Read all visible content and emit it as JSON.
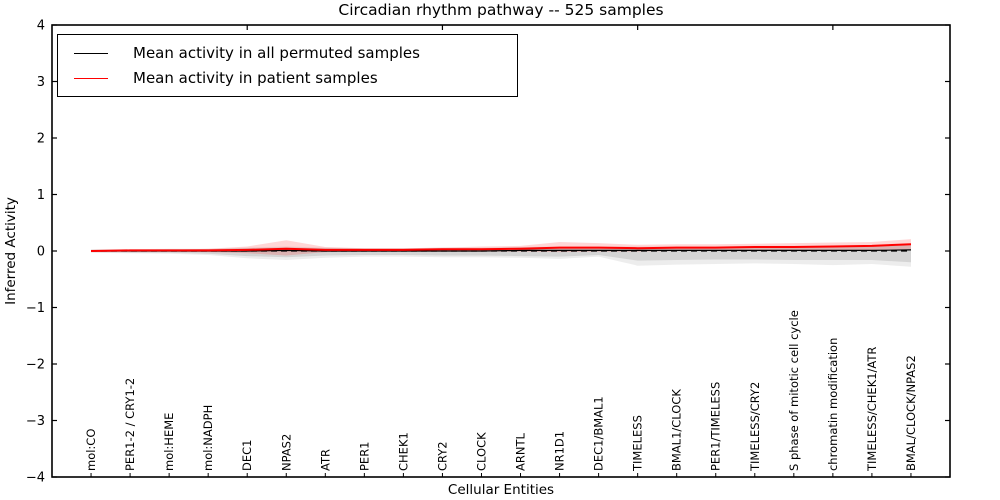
{
  "window": {
    "background": "#ffffff"
  },
  "chart_data": {
    "type": "line",
    "title": "Circadian rhythm pathway -- 525 samples",
    "xlabel": "Cellular Entities",
    "ylabel": "Inferred Activity",
    "ylim": [
      -4,
      4
    ],
    "ytick_step": 1,
    "grid": false,
    "legend_position": "upper left",
    "x_tick_label_rotation": 90,
    "top_tick_indices": [
      4,
      9,
      14,
      19
    ],
    "categories": [
      "mol:CO",
      "PER1-2 / CRY1-2",
      "mol:HEME",
      "mol:NADPH",
      "DEC1",
      "NPAS2",
      "ATR",
      "PER1",
      "CHEK1",
      "CRY2",
      "CLOCK",
      "ARNTL",
      "NR1D1",
      "DEC1/BMAL1",
      "TIMELESS",
      "BMAL1/CLOCK",
      "PER1/TIMELESS",
      "TIMELESS/CRY2",
      "S phase of mitotic cell cycle",
      "chromatin modification",
      "TIMELESS/CHEK1/ATR",
      "BMAL/CLOCK/NPAS2"
    ],
    "series": [
      {
        "name": "Mean activity in all permuted samples",
        "color": "#000000",
        "line_style": "solid",
        "line_width": 1.2,
        "values": [
          0.0,
          0.0,
          0.0,
          0.0,
          0.0,
          0.01,
          0.0,
          0.0,
          0.0,
          0.0,
          0.0,
          0.01,
          0.01,
          0.01,
          0.01,
          0.01,
          0.01,
          0.01,
          0.01,
          0.01,
          0.01,
          0.02
        ]
      },
      {
        "name": "Mean activity in patient samples",
        "color": "#ff0000",
        "line_style": "solid",
        "line_width": 2,
        "values": [
          0.0,
          0.01,
          0.01,
          0.01,
          0.02,
          0.04,
          0.02,
          0.02,
          0.02,
          0.03,
          0.03,
          0.04,
          0.06,
          0.06,
          0.05,
          0.06,
          0.06,
          0.07,
          0.07,
          0.08,
          0.09,
          0.12
        ]
      }
    ],
    "reference_line": {
      "value": 0,
      "color": "#000000",
      "line_style": "dashed"
    },
    "bands": [
      {
        "name": "permuted-samples-spread-outer",
        "color": "#999999",
        "opacity": 0.18,
        "upper": [
          0.03,
          0.03,
          0.04,
          0.04,
          0.06,
          0.08,
          0.06,
          0.05,
          0.05,
          0.06,
          0.06,
          0.07,
          0.08,
          0.08,
          0.08,
          0.08,
          0.08,
          0.09,
          0.09,
          0.09,
          0.1,
          0.12
        ],
        "lower": [
          -0.03,
          -0.04,
          -0.05,
          -0.07,
          -0.13,
          -0.16,
          -0.12,
          -0.1,
          -0.1,
          -0.11,
          -0.11,
          -0.12,
          -0.14,
          -0.1,
          -0.26,
          -0.24,
          -0.23,
          -0.22,
          -0.23,
          -0.25,
          -0.23,
          -0.28
        ]
      },
      {
        "name": "permuted-samples-spread",
        "color": "#8a8a8a",
        "opacity": 0.25,
        "upper": [
          0.02,
          0.02,
          0.03,
          0.03,
          0.05,
          0.06,
          0.05,
          0.04,
          0.04,
          0.05,
          0.05,
          0.06,
          0.07,
          0.07,
          0.06,
          0.07,
          0.07,
          0.07,
          0.08,
          0.08,
          0.08,
          0.1
        ],
        "lower": [
          -0.02,
          -0.03,
          -0.03,
          -0.05,
          -0.09,
          -0.11,
          -0.08,
          -0.07,
          -0.07,
          -0.08,
          -0.08,
          -0.09,
          -0.1,
          -0.07,
          -0.17,
          -0.16,
          -0.15,
          -0.15,
          -0.16,
          -0.16,
          -0.16,
          -0.2
        ]
      },
      {
        "name": "patient-samples-spread",
        "color": "#ff0000",
        "opacity": 0.16,
        "upper": [
          0.01,
          0.02,
          0.02,
          0.04,
          0.08,
          0.19,
          0.07,
          0.05,
          0.05,
          0.06,
          0.08,
          0.09,
          0.16,
          0.14,
          0.11,
          0.12,
          0.12,
          0.13,
          0.14,
          0.15,
          0.16,
          0.21
        ],
        "lower": [
          -0.01,
          -0.01,
          -0.01,
          -0.02,
          -0.04,
          -0.08,
          -0.02,
          -0.01,
          -0.01,
          -0.01,
          -0.01,
          -0.01,
          -0.02,
          -0.01,
          -0.01,
          0.0,
          0.0,
          0.0,
          0.01,
          0.01,
          0.02,
          0.03
        ]
      }
    ]
  }
}
